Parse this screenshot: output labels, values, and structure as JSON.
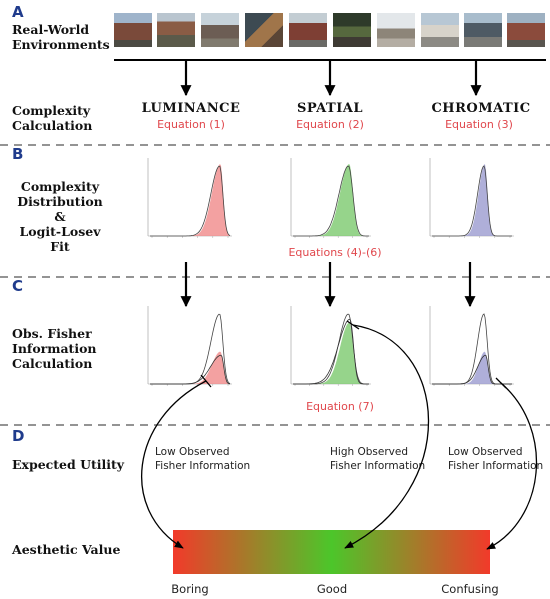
{
  "sections": {
    "a": "A",
    "b": "B",
    "c": "C",
    "d": "D"
  },
  "rows": {
    "environments": [
      "Real-World",
      "Environments"
    ],
    "complexity_calc": [
      "Complexity",
      "Calculation"
    ],
    "distribution": [
      "Complexity",
      "Distribution",
      "&",
      "Logit-Losev",
      "Fit"
    ],
    "fisher": [
      "Obs. Fisher",
      "Information",
      "Calculation"
    ],
    "utility": "Expected Utility",
    "aesthetic": "Aesthetic Value"
  },
  "columns": [
    {
      "name": "LUMINANCE",
      "equation": "Equation (1)",
      "color": "#f08a8a",
      "utility": [
        "Low Observed",
        "Fisher Information"
      ]
    },
    {
      "name": "SPATIAL",
      "equation": "Equation (2)",
      "color": "#7cc96e",
      "utility": [
        "High Observed",
        "Fisher Information"
      ]
    },
    {
      "name": "CHROMATIC",
      "equation": "Equation (3)",
      "color": "#9b9bd0",
      "utility": [
        "Low Observed",
        "Fisher Information"
      ]
    }
  ],
  "fit_equation": "Equations (4)-(6)",
  "fisher_equation": "Equation (7)",
  "scale_labels": {
    "left": "Boring",
    "middle": "Good",
    "right": "Confusing"
  },
  "scale_colors": {
    "left": "#f23a2a",
    "middle": "#4cc62a",
    "right": "#f23a2a"
  },
  "photo_count": 10
}
